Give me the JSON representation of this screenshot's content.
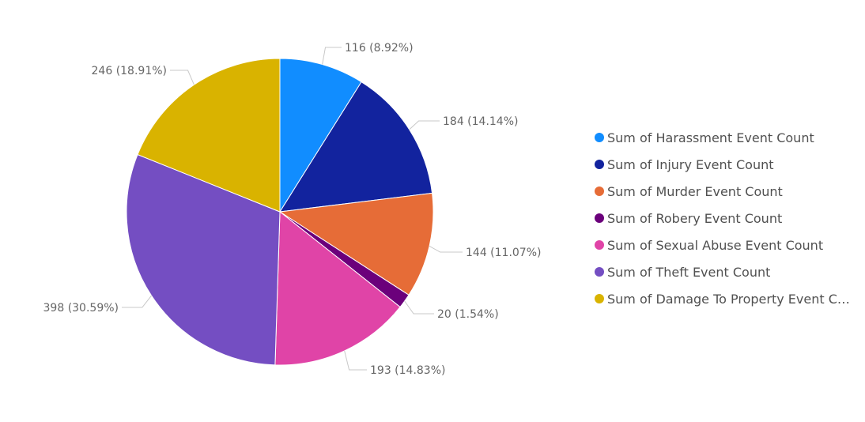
{
  "chart_data": {
    "type": "pie",
    "title": "",
    "legend_position": "right",
    "series": [
      {
        "name": "Sum of Harassment Event Count",
        "value": 116,
        "percent": 8.92,
        "color": "#118DFF",
        "label": "116 (8.92%)"
      },
      {
        "name": "Sum of Injury Event Count",
        "value": 184,
        "percent": 14.14,
        "color": "#12239E",
        "label": "184 (14.14%)"
      },
      {
        "name": "Sum of Murder Event Count",
        "value": 144,
        "percent": 11.07,
        "color": "#E66C37",
        "label": "144 (11.07%)"
      },
      {
        "name": "Sum of Robery Event Count",
        "value": 20,
        "percent": 1.54,
        "color": "#6B007B",
        "label": "20 (1.54%)"
      },
      {
        "name": "Sum of Sexual Abuse Event Count",
        "value": 193,
        "percent": 14.83,
        "color": "#E044A7",
        "label": "193 (14.83%)"
      },
      {
        "name": "Sum of Theft Event Count",
        "value": 398,
        "percent": 30.59,
        "color": "#744EC2",
        "label": "398 (30.59%)"
      },
      {
        "name": "Sum of Damage To Property Event Count",
        "value": 246,
        "percent": 18.91,
        "color": "#D9B300",
        "label": "246 (18.91%)"
      }
    ]
  }
}
